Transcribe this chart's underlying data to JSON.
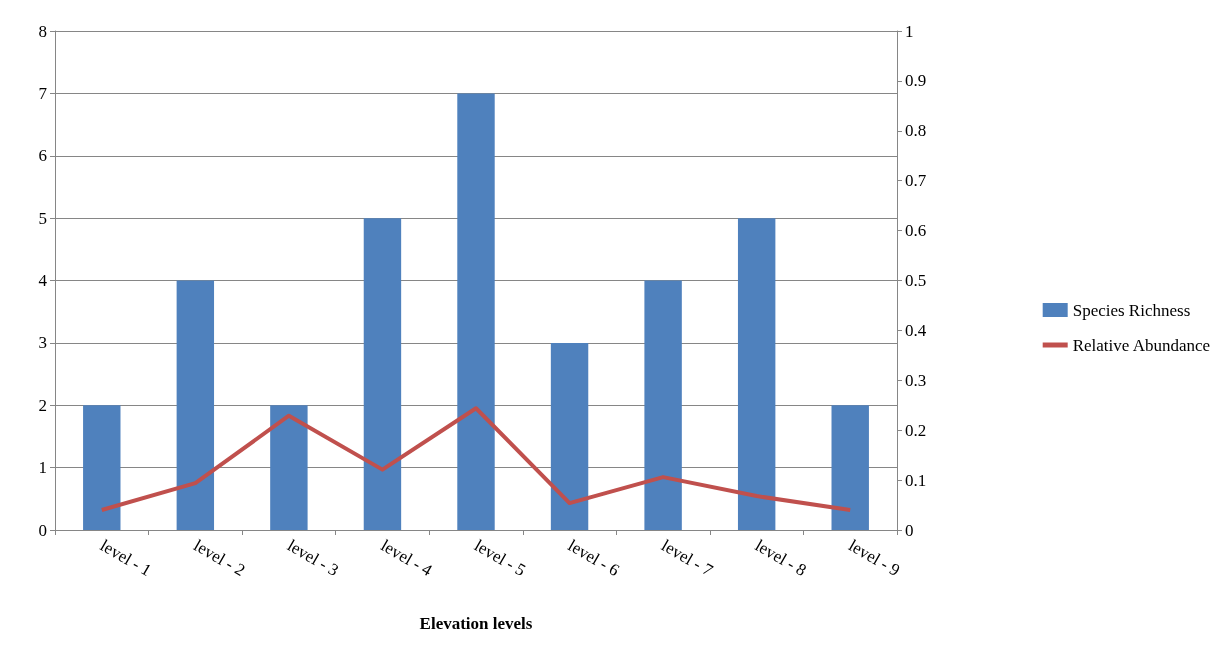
{
  "chart_data": {
    "type": "bar",
    "xlabel": "Elevation levels",
    "categories": [
      "level - 1",
      "level - 2",
      "level - 3",
      "level - 4",
      "level - 5",
      "level - 6",
      "level - 7",
      "level - 8",
      "level - 9"
    ],
    "series": [
      {
        "name": "Species Richness",
        "color": "#4f81bd",
        "values": [
          2,
          4,
          2,
          5,
          7,
          3,
          4,
          5,
          2
        ]
      },
      {
        "name": "Relative Abundance",
        "type": "line",
        "axis": "y2",
        "color": "#c0504d",
        "values": [
          0.04,
          0.094,
          0.229,
          0.121,
          0.244,
          0.054,
          0.106,
          0.068,
          0.04
        ]
      }
    ],
    "ylim": [
      0,
      8
    ],
    "yticks": [
      0,
      1,
      2,
      3,
      4,
      5,
      6,
      7,
      8
    ],
    "y2lim": [
      0,
      1
    ],
    "y2ticks": [
      0,
      0.1,
      0.2,
      0.3,
      0.4,
      0.5,
      0.6,
      0.7,
      0.8,
      0.9,
      1
    ],
    "grid": "y",
    "legend": "right",
    "marker": "none"
  }
}
